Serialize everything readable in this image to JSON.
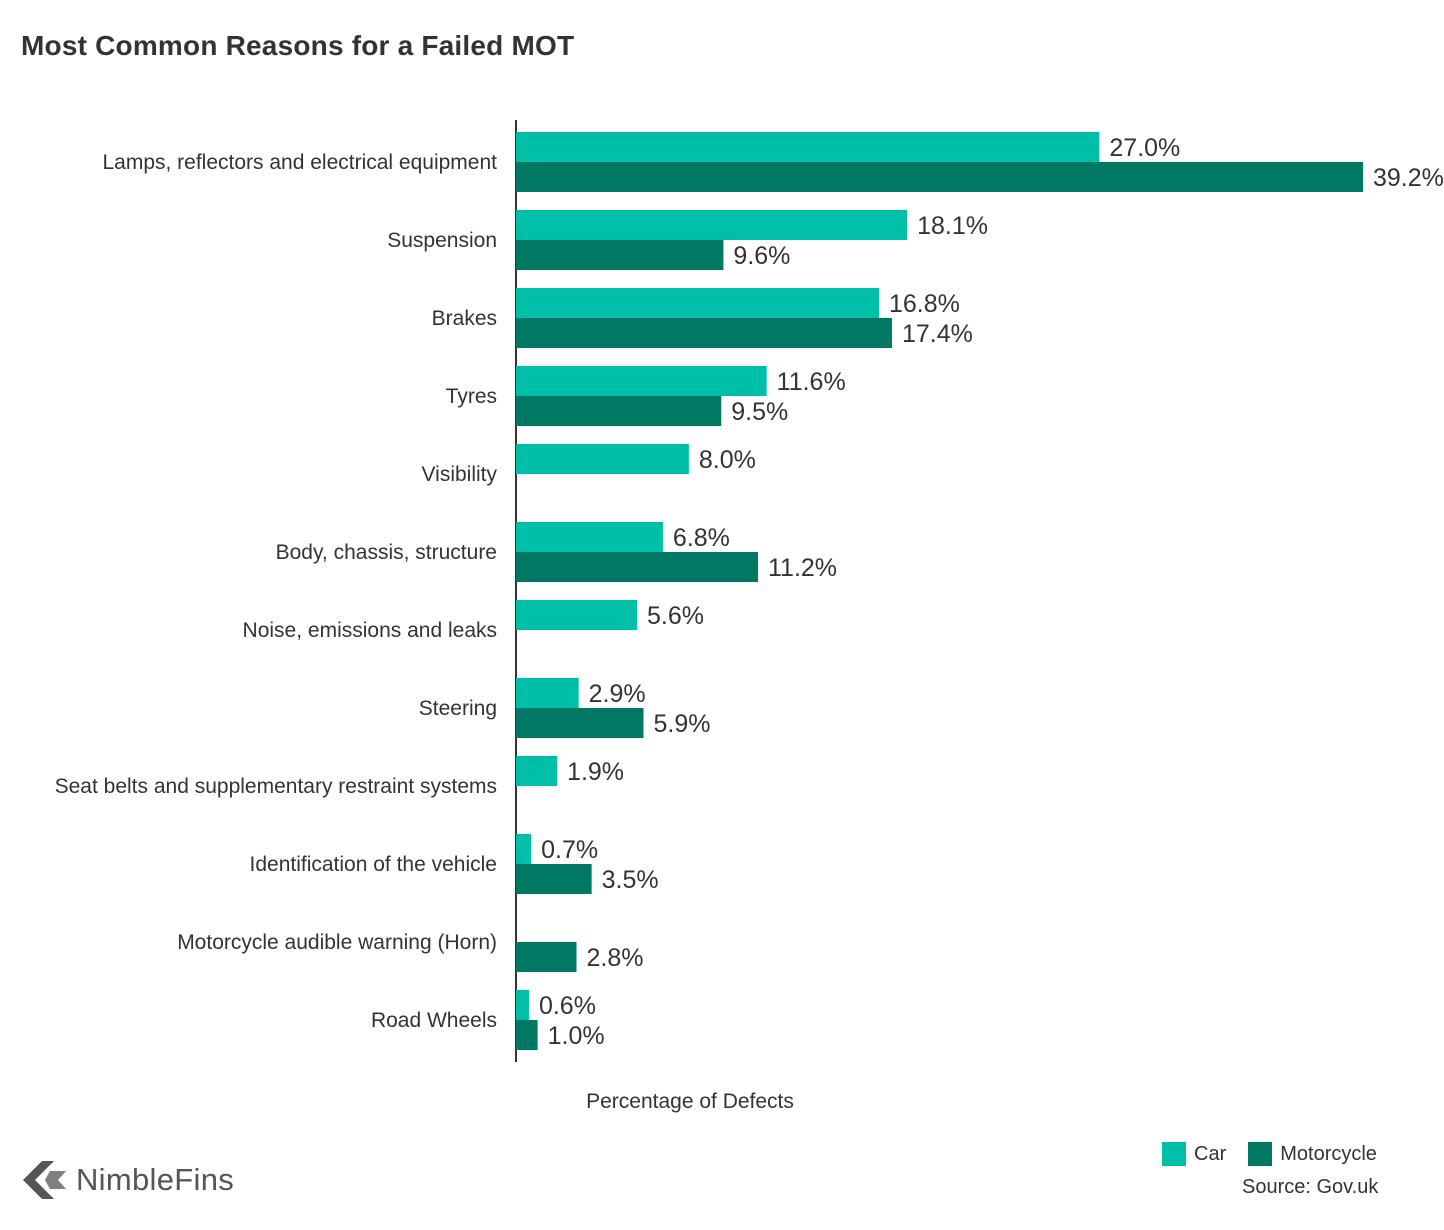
{
  "title": "Most Common Reasons for a Failed MOT",
  "chart_data": {
    "type": "bar",
    "orientation": "horizontal",
    "title": "Most Common Reasons for a Failed MOT",
    "xlabel": "Percentage of Defects",
    "ylabel": "",
    "xlim": [
      0,
      39.2
    ],
    "grid": false,
    "legend_position": "bottom-right",
    "categories": [
      "Lamps, reflectors and electrical equipment",
      "Suspension",
      "Brakes",
      "Tyres",
      "Visibility",
      "Body, chassis, structure",
      "Noise, emissions and leaks",
      "Steering",
      "Seat belts and supplementary restraint systems",
      "Identification of the vehicle",
      "Motorcycle audible warning (Horn)",
      "Road Wheels"
    ],
    "series": [
      {
        "name": "Car",
        "color": "#00BFA8",
        "values": [
          27.0,
          18.1,
          16.8,
          11.6,
          8.0,
          6.8,
          5.6,
          2.9,
          1.9,
          0.7,
          null,
          0.6
        ],
        "labels": [
          "27.0%",
          "18.1%",
          "16.8%",
          "11.6%",
          "8.0%",
          "6.8%",
          "5.6%",
          "2.9%",
          "1.9%",
          "0.7%",
          null,
          "0.6%"
        ]
      },
      {
        "name": "Motorcycle",
        "color": "#007863",
        "values": [
          39.2,
          9.6,
          17.4,
          9.5,
          null,
          11.2,
          null,
          5.9,
          null,
          3.5,
          2.8,
          1.0
        ],
        "labels": [
          "39.2%",
          "9.6%",
          "17.4%",
          "9.5%",
          null,
          "11.2%",
          null,
          "5.9%",
          null,
          "3.5%",
          "2.8%",
          "1.0%"
        ]
      }
    ]
  },
  "legend": {
    "car_label": "Car",
    "motorcycle_label": "Motorcycle"
  },
  "source_text": "Source: Gov.uk",
  "brand": {
    "name": "NimbleFins",
    "logo_icon": "chevron-left-logo-icon"
  }
}
